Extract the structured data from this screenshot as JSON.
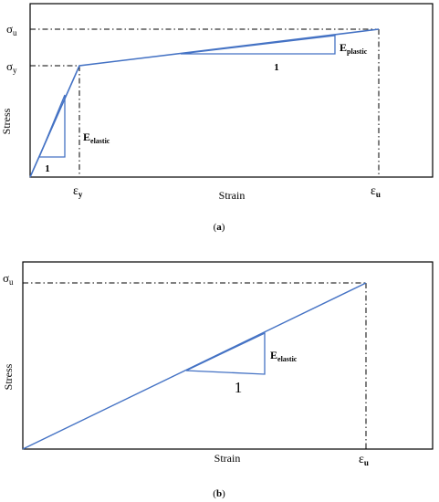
{
  "colors": {
    "curve": "#4472c4",
    "frame": "#000000",
    "guide": "#000000"
  },
  "panel_a": {
    "caption_open": "(",
    "caption_letter": "a",
    "caption_close": ")",
    "y_axis_label": "Stress",
    "x_axis_label": "Strain",
    "sigma_u_base": "σ",
    "sigma_u_sub": "u",
    "sigma_y_base": "σ",
    "sigma_y_sub": "y",
    "eps_y_base": "ε",
    "eps_y_sub": "y",
    "eps_u_base": "ε",
    "eps_u_sub": "u",
    "e_elastic_base": "E",
    "e_elastic_sub": "elastic",
    "e_plastic_base": "E",
    "e_plastic_sub": "plastic",
    "slope_run_elastic": "1",
    "slope_run_plastic": "1"
  },
  "panel_b": {
    "caption_open": "(",
    "caption_letter": "b",
    "caption_close": ")",
    "y_axis_label": "Stress",
    "x_axis_label": "Strain",
    "sigma_u_base": "σ",
    "sigma_u_sub": "u",
    "eps_u_base": "ε",
    "eps_u_sub": "u",
    "e_elastic_base": "E",
    "e_elastic_sub": "elastic",
    "slope_run": "1"
  }
}
